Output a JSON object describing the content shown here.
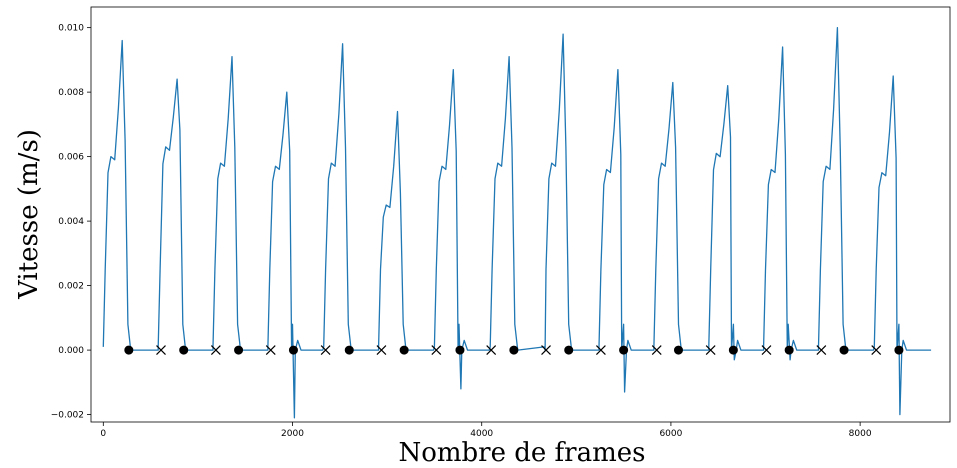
{
  "chart_data": {
    "type": "line",
    "title": "",
    "xlabel": "Nombre de frames",
    "ylabel": "Vitesse (m/s)",
    "xlim": [
      -130,
      8950
    ],
    "ylim": [
      -0.00223,
      0.01064
    ],
    "xticks": [
      0,
      2000,
      4000,
      6000,
      8000
    ],
    "xtick_labels": [
      "0",
      "2000",
      "4000",
      "6000",
      "8000"
    ],
    "yticks": [
      -0.002,
      0.0,
      0.002,
      0.004,
      0.006,
      0.008,
      0.01
    ],
    "ytick_labels": [
      "−0.002",
      "0.000",
      "0.002",
      "0.004",
      "0.006",
      "0.008",
      "0.010"
    ],
    "grid": false,
    "line_color": "#1f77b4",
    "marker_color": "#000000",
    "cycle_starts": [
      0,
      580,
      1160,
      1740,
      2330,
      2910,
      3500,
      4090,
      4660,
      5240,
      5820,
      6400,
      6980,
      7560,
      8150
    ],
    "cycle_shape": [
      [
        0,
        0.0001
      ],
      [
        20,
        0.0025
      ],
      [
        50,
        0.0055
      ],
      [
        80,
        0.006
      ],
      [
        120,
        0.0059
      ],
      [
        160,
        0.0075
      ],
      [
        200,
        0.0096
      ],
      [
        230,
        0.0065
      ],
      [
        260,
        0.0008
      ],
      [
        290,
        0.0
      ],
      [
        580,
        0.0
      ]
    ],
    "peaks": [
      0.0096,
      0.0084,
      0.0091,
      0.008,
      0.0095,
      0.0074,
      0.0087,
      0.0091,
      0.0098,
      0.0087,
      0.0083,
      0.0082,
      0.0094,
      0.01,
      0.0085
    ],
    "shoulders": [
      0.006,
      0.0063,
      0.0058,
      0.0057,
      0.0058,
      0.0045,
      0.0057,
      0.0058,
      0.0058,
      0.0056,
      0.0058,
      0.0061,
      0.0056,
      0.0057,
      0.0055
    ],
    "series": [
      {
        "marker": "circle",
        "x": [
          270,
          850,
          1430,
          2010,
          2600,
          3180,
          3770,
          4340,
          4920,
          5500,
          6080,
          6660,
          7250,
          7830,
          8410
        ],
        "y": [
          0,
          0,
          0,
          0,
          0,
          0,
          0,
          0,
          0,
          0,
          0,
          0,
          0,
          0,
          0
        ]
      },
      {
        "marker": "x",
        "x": [
          610,
          1190,
          1770,
          2350,
          2940,
          3520,
          4100,
          4680,
          5260,
          5850,
          6420,
          7010,
          7590,
          8170
        ],
        "y": [
          0,
          0,
          0,
          0,
          0,
          0,
          0,
          0,
          0,
          0,
          0,
          0,
          0,
          0
        ]
      }
    ],
    "dips": [
      {
        "x": 2010,
        "y": -0.0021
      },
      {
        "x": 3770,
        "y": -0.0012
      },
      {
        "x": 5500,
        "y": -0.0013
      },
      {
        "x": 6660,
        "y": -0.0003
      },
      {
        "x": 7250,
        "y": -0.0003
      },
      {
        "x": 8410,
        "y": -0.002
      }
    ],
    "x_end": 8750
  }
}
